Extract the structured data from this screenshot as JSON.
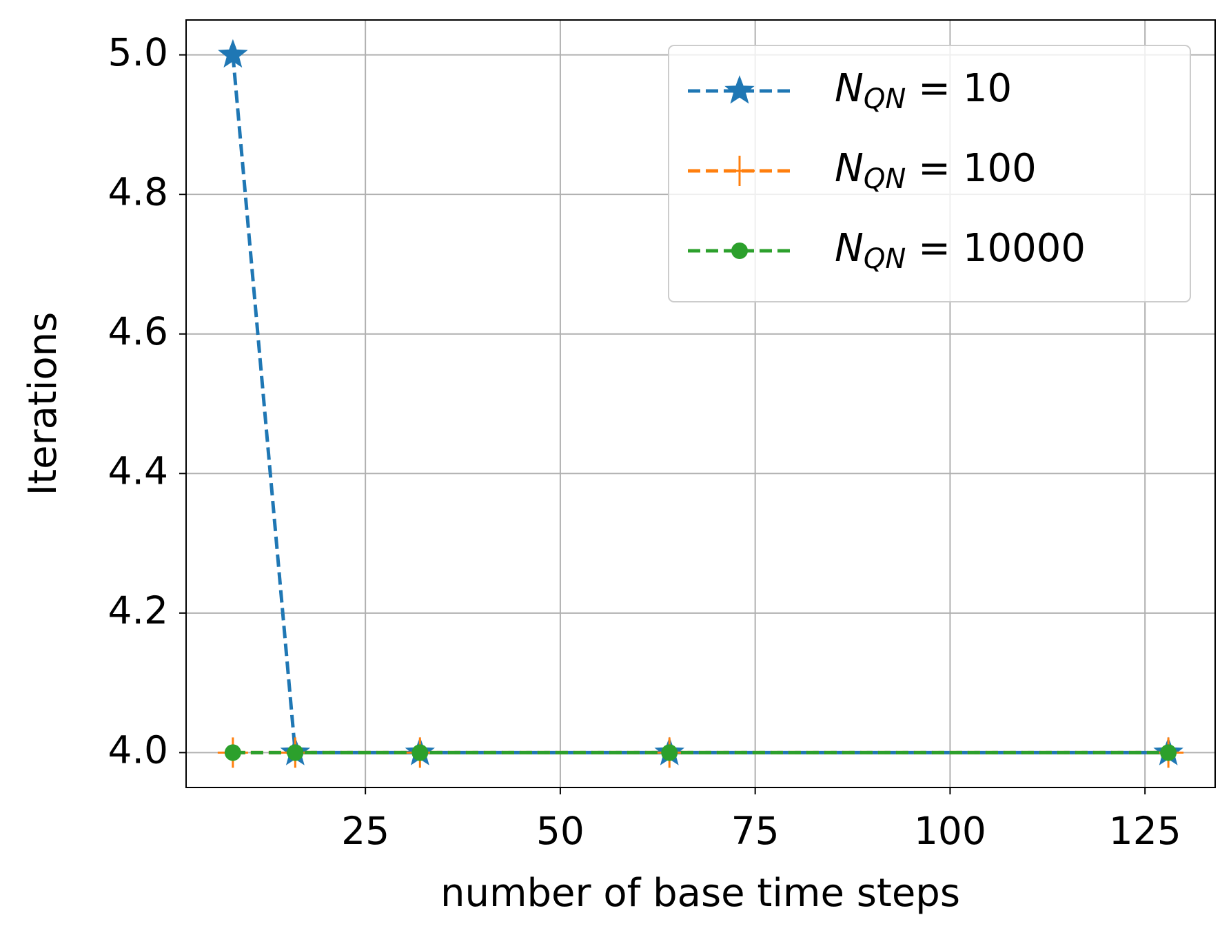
{
  "chart_data": {
    "type": "line",
    "xlabel": "number of base time steps",
    "ylabel": "Iterations",
    "x": [
      8,
      16,
      32,
      64,
      128
    ],
    "series": [
      {
        "name": "$N_{QN}$ = 10",
        "color": "#1f77b4",
        "marker": "star",
        "values": [
          5,
          4,
          4,
          4,
          4
        ]
      },
      {
        "name": "$N_{QN}$ = 100",
        "color": "#ff7f0e",
        "marker": "plus",
        "values": [
          4,
          4,
          4,
          4,
          4
        ]
      },
      {
        "name": "$N_{QN}$ = 10000",
        "color": "#2ca02c",
        "marker": "circle",
        "values": [
          4,
          4,
          4,
          4,
          4
        ]
      }
    ],
    "xlim": [
      2,
      134
    ],
    "ylim": [
      3.95,
      5.05
    ],
    "xticks": [
      25,
      50,
      75,
      100,
      125
    ],
    "yticks": [
      {
        "value": 4,
        "label": "4.0"
      },
      4.2,
      4.4,
      4.6,
      4.8,
      {
        "value": 5,
        "label": "5.0"
      }
    ],
    "grid": true,
    "legend": "upper right"
  }
}
